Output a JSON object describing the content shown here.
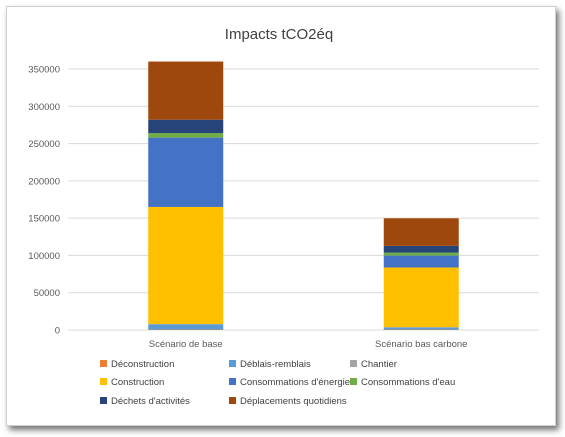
{
  "chart_data": {
    "type": "bar",
    "stacked": true,
    "title": "Impacts tCO2éq",
    "xlabel": "",
    "ylabel": "",
    "ylim": [
      0,
      350000
    ],
    "yticks": [
      0,
      50000,
      100000,
      150000,
      200000,
      250000,
      300000,
      350000
    ],
    "ytick_labels": [
      "0",
      "50000",
      "100000",
      "150000",
      "200000",
      "250000",
      "300000",
      "350000"
    ],
    "categories": [
      "Scénario de base",
      "Scénario bas carbone"
    ],
    "grid": true,
    "legend_position": "bottom",
    "series": [
      {
        "name": "Déconstruction",
        "color": "#ED7D31",
        "values": [
          500,
          500
        ]
      },
      {
        "name": "Déblais-remblais",
        "color": "#5B9BD5",
        "values": [
          7000,
          3000
        ]
      },
      {
        "name": "Chantier",
        "color": "#A5A5A5",
        "values": [
          500,
          300
        ]
      },
      {
        "name": "Construction",
        "color": "#FFC000",
        "values": [
          157000,
          80000
        ]
      },
      {
        "name": "Consommations d'énergie",
        "color": "#4472C4",
        "values": [
          93000,
          16000
        ]
      },
      {
        "name": "Consommations d'eau",
        "color": "#70AD47",
        "values": [
          6000,
          4000
        ]
      },
      {
        "name": "Déchets d'activités",
        "color": "#264478",
        "values": [
          18000,
          9000
        ]
      },
      {
        "name": "Déplacements quotidiens",
        "color": "#9E480E",
        "values": [
          78000,
          37000
        ]
      }
    ]
  }
}
